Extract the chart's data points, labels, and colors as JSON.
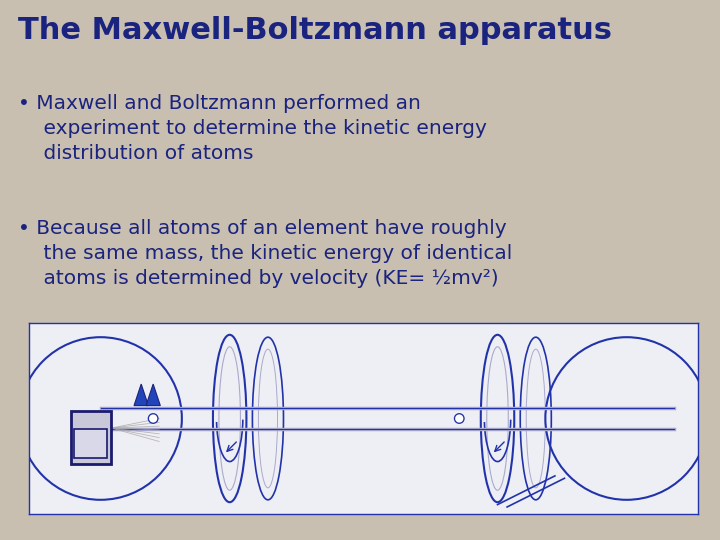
{
  "title": "The Maxwell-Boltzmann apparatus",
  "bullet1_line1": "Maxwell and Boltzmann performed an",
  "bullet1_line2": "experiment to determine the kinetic energy",
  "bullet1_line3": "distribution of atoms",
  "bullet2_line1": "Because all atoms of an element have roughly",
  "bullet2_line2": "the same mass, the kinetic energy of identical",
  "bullet2_line3": "atoms is determined by velocity (KE= ½mv²)",
  "bg_color": "#c8bfb0",
  "title_color": "#1a237e",
  "text_color": "#1a237e",
  "diagram_bg": "#eeeef5",
  "diagram_line_color": "#2233aa",
  "title_fontsize": 22,
  "body_fontsize": 14.5
}
